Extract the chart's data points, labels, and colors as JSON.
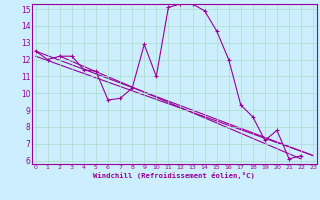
{
  "xlabel": "Windchill (Refroidissement éolien,°C)",
  "bg_color": "#cceeff",
  "grid_color": "#aaddcc",
  "line_color": "#990099",
  "xmin": 0,
  "xmax": 23,
  "ymin": 6,
  "ymax": 15,
  "yticks": [
    6,
    7,
    8,
    9,
    10,
    11,
    12,
    13,
    14,
    15
  ],
  "xticks": [
    0,
    1,
    2,
    3,
    4,
    5,
    6,
    7,
    8,
    9,
    10,
    11,
    12,
    13,
    14,
    15,
    16,
    17,
    18,
    19,
    20,
    21,
    22,
    23
  ],
  "curve_x": [
    0,
    1,
    2,
    3,
    4,
    5,
    6,
    7,
    8,
    9,
    10,
    11,
    12,
    13,
    14,
    15,
    16,
    17,
    18,
    19,
    20,
    21,
    22
  ],
  "curve_y": [
    12.5,
    12.0,
    12.2,
    12.2,
    11.4,
    11.3,
    9.6,
    9.7,
    10.3,
    12.9,
    11.0,
    15.1,
    15.3,
    15.3,
    14.9,
    13.7,
    12.0,
    9.3,
    8.6,
    7.2,
    7.8,
    6.1,
    6.3
  ],
  "line1_x": [
    0,
    23
  ],
  "line1_y": [
    12.5,
    6.3
  ],
  "line2_x": [
    0,
    23
  ],
  "line2_y": [
    12.2,
    6.3
  ],
  "line3_x": [
    2,
    22
  ],
  "line3_y": [
    12.2,
    6.1
  ]
}
